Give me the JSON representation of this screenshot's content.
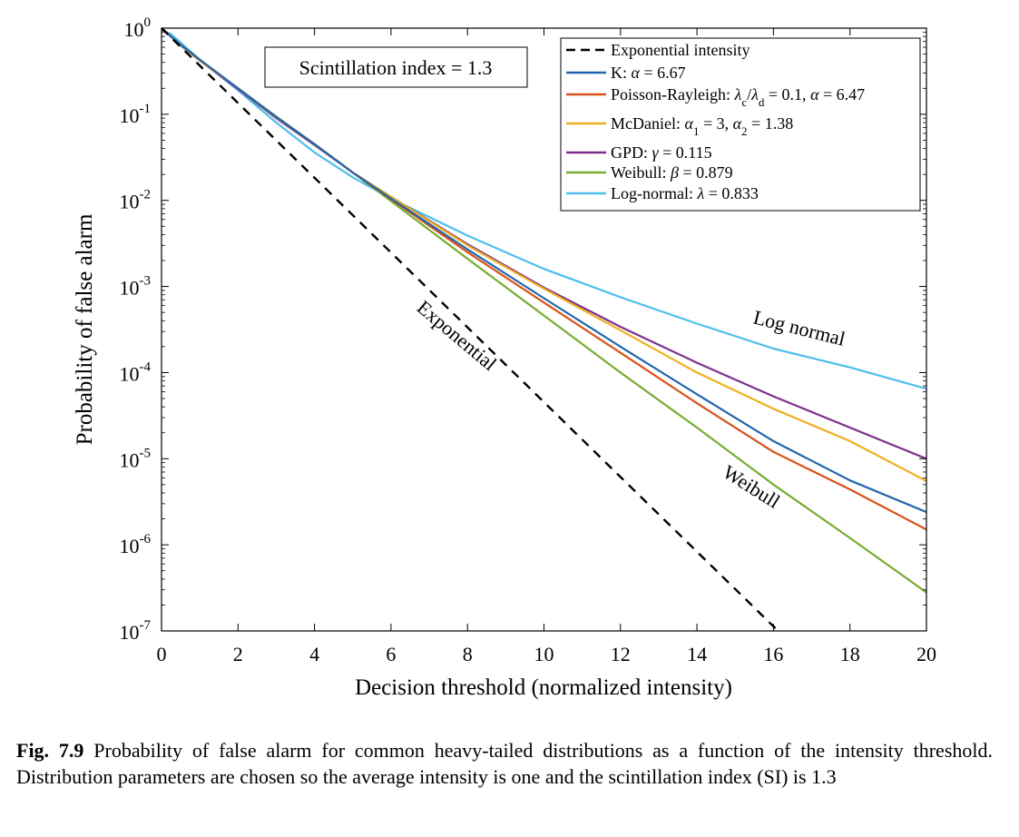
{
  "chart_data": {
    "type": "line",
    "xlabel": "Decision threshold (normalized intensity)",
    "ylabel": "Probability of false alarm",
    "xlim": [
      0,
      20
    ],
    "ylim": [
      1e-07,
      1
    ],
    "yscale": "log",
    "xticks": [
      0,
      2,
      4,
      6,
      8,
      10,
      12,
      14,
      16,
      18,
      20
    ],
    "yticks": [
      {
        "base": "10",
        "exp": "0",
        "value": 1
      },
      {
        "base": "10",
        "exp": "-1",
        "value": 0.1
      },
      {
        "base": "10",
        "exp": "-2",
        "value": 0.01
      },
      {
        "base": "10",
        "exp": "-3",
        "value": 0.001
      },
      {
        "base": "10",
        "exp": "-4",
        "value": 0.0001
      },
      {
        "base": "10",
        "exp": "-5",
        "value": 1e-05
      },
      {
        "base": "10",
        "exp": "-6",
        "value": 1e-06
      },
      {
        "base": "10",
        "exp": "-7",
        "value": 1e-07
      }
    ],
    "grid": false,
    "legend_position": "top-right",
    "annotation_box": "Scintillation index = 1.3",
    "series": [
      {
        "key": "exp",
        "legend": "Exponential intensity",
        "color": "#000000",
        "dashed": true,
        "x": [
          0,
          2,
          4,
          6,
          8,
          10,
          12,
          14,
          16.12
        ],
        "y": [
          1,
          0.135,
          0.0183,
          0.00248,
          0.000335,
          4.54e-05,
          6.14e-06,
          8.32e-07,
          1e-07
        ]
      },
      {
        "key": "k",
        "legend": "K: α = 6.67",
        "color": "#2166ac",
        "dashed": false,
        "x": [
          0,
          0.5,
          1,
          2,
          3,
          4,
          5,
          6,
          8,
          10,
          12,
          14,
          16,
          18,
          20
        ],
        "y": [
          1,
          0.64,
          0.43,
          0.2,
          0.093,
          0.045,
          0.021,
          0.0105,
          0.0027,
          0.00073,
          0.0002,
          5.6e-05,
          1.6e-05,
          5.6e-06,
          2.4e-06
        ]
      },
      {
        "key": "pr",
        "legend": "Poisson-Rayleigh: λc/λd = 0.1,  α = 6.47",
        "color": "#d95319",
        "dashed": false,
        "x": [
          0,
          0.5,
          1,
          2,
          3,
          4,
          5,
          6,
          8,
          10,
          12,
          14,
          16,
          18,
          20
        ],
        "y": [
          1,
          0.64,
          0.43,
          0.2,
          0.093,
          0.045,
          0.021,
          0.0103,
          0.0025,
          0.00065,
          0.00017,
          4.4e-05,
          1.2e-05,
          4.4e-06,
          1.5e-06
        ]
      },
      {
        "key": "mcd",
        "legend": "McDaniel: α1 = 3,  α2 = 1.38",
        "color": "#edb120",
        "dashed": false,
        "x": [
          0,
          0.5,
          1,
          2,
          3,
          4,
          5,
          6,
          8,
          10,
          12,
          14,
          16,
          18,
          20
        ],
        "y": [
          1,
          0.63,
          0.42,
          0.2,
          0.092,
          0.045,
          0.021,
          0.011,
          0.003,
          0.00094,
          0.00031,
          0.0001,
          3.8e-05,
          1.6e-05,
          5.5e-06
        ]
      },
      {
        "key": "gpd",
        "legend": "GPD: γ = 0.115",
        "color": "#7e2f8e",
        "dashed": false,
        "x": [
          0,
          0.5,
          1,
          2,
          3,
          4,
          5,
          6,
          8,
          10,
          12,
          14,
          16,
          18,
          20
        ],
        "y": [
          1,
          0.63,
          0.42,
          0.195,
          0.09,
          0.044,
          0.021,
          0.011,
          0.0031,
          0.00097,
          0.00034,
          0.00013,
          5.3e-05,
          2.3e-05,
          1e-05
        ]
      },
      {
        "key": "wei",
        "legend": "Weibull: β = 0.879",
        "color": "#77ac30",
        "dashed": false,
        "x": [
          0,
          0.5,
          1,
          2,
          3,
          4,
          5,
          6,
          8,
          10,
          12,
          14,
          16,
          18,
          20
        ],
        "y": [
          1,
          0.63,
          0.42,
          0.2,
          0.094,
          0.045,
          0.021,
          0.0098,
          0.0021,
          0.00046,
          0.0001,
          2.3e-05,
          5e-06,
          1.2e-06,
          2.8e-07
        ]
      },
      {
        "key": "ln",
        "legend": "Log-normal: λ = 0.833",
        "color": "#4dbeee",
        "dashed": false,
        "x": [
          0,
          0.25,
          0.5,
          1,
          2,
          3,
          4,
          5,
          6,
          8,
          10,
          12,
          14,
          16,
          18,
          20
        ],
        "y": [
          0.95,
          0.85,
          0.68,
          0.43,
          0.19,
          0.08,
          0.036,
          0.0185,
          0.0105,
          0.0039,
          0.0016,
          0.00075,
          0.00037,
          0.00019,
          0.000115,
          6.5e-05
        ]
      }
    ],
    "curve_labels": [
      {
        "text": "Log normal"
      },
      {
        "text": "Exponential"
      },
      {
        "text": "Weibull"
      }
    ]
  },
  "caption": {
    "label": "Fig. 7.9",
    "text": "Probability of false alarm for common heavy-tailed distributions as a function of the intensity threshold. Distribution parameters are chosen so the average intensity is one and the scintillation index (SI) is 1.3"
  }
}
